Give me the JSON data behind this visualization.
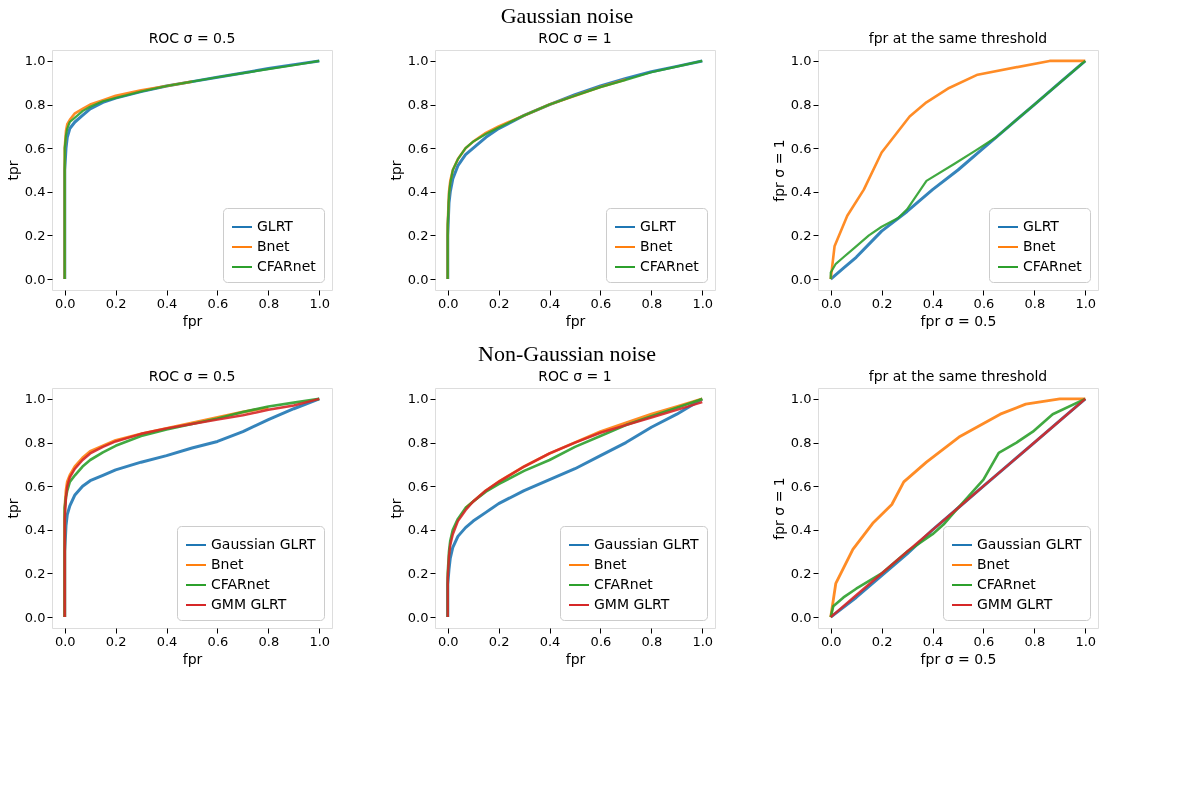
{
  "chart_data": [
    {
      "type": "line",
      "title": "ROC σ = 0.5",
      "xlabel": "fpr",
      "ylabel": "tpr",
      "annotations": [
        "Gaussian noise"
      ],
      "legend": "bottom right",
      "grid": false,
      "xlim": [
        -0.05,
        1.05
      ],
      "ylim": [
        -0.05,
        1.05
      ],
      "xticks": [
        {
          "value": 0,
          "label": "0.0"
        },
        {
          "value": 0.2,
          "label": "0.2"
        },
        {
          "value": 0.4,
          "label": "0.4"
        },
        {
          "value": 0.6,
          "label": "0.6"
        },
        {
          "value": 0.8,
          "label": "0.8"
        },
        {
          "value": 1,
          "label": "1.0"
        }
      ],
      "yticks": [
        {
          "value": 0,
          "label": "0.0"
        },
        {
          "value": 0.2,
          "label": "0.2"
        },
        {
          "value": 0.4,
          "label": "0.4"
        },
        {
          "value": 0.6,
          "label": "0.6"
        },
        {
          "value": 0.8,
          "label": "0.8"
        },
        {
          "value": 1,
          "label": "1.0"
        }
      ],
      "series": [
        {
          "name": "GLRT",
          "color": "#1f77b4",
          "x": [
            0,
            0,
            0.005,
            0.01,
            0.02,
            0.04,
            0.07,
            0.1,
            0.15,
            0.2,
            0.3,
            0.4,
            0.5,
            0.6,
            0.7,
            0.8,
            0.9,
            1
          ],
          "values": [
            0,
            0.5,
            0.6,
            0.65,
            0.69,
            0.72,
            0.75,
            0.78,
            0.81,
            0.83,
            0.86,
            0.885,
            0.905,
            0.925,
            0.945,
            0.965,
            0.983,
            1
          ]
        },
        {
          "name": "Bnet",
          "color": "#ff7f0e",
          "x": [
            0,
            0,
            0.005,
            0.01,
            0.02,
            0.04,
            0.07,
            0.1,
            0.15,
            0.2,
            0.3,
            0.4,
            0.5
          ],
          "values": [
            0,
            0.6,
            0.68,
            0.71,
            0.73,
            0.76,
            0.78,
            0.8,
            0.82,
            0.84,
            0.865,
            0.885,
            0.905
          ]
        },
        {
          "name": "CFARnet",
          "color": "#2ca02c",
          "x": [
            0,
            0,
            0.005,
            0.01,
            0.02,
            0.04,
            0.07,
            0.1,
            0.15,
            0.2,
            0.3,
            0.4,
            0.5,
            0.6,
            0.7,
            0.8,
            0.9,
            1
          ],
          "values": [
            0,
            0.6,
            0.66,
            0.69,
            0.72,
            0.74,
            0.77,
            0.79,
            0.815,
            0.83,
            0.86,
            0.885,
            0.905,
            0.925,
            0.944,
            0.962,
            0.98,
            1
          ]
        }
      ]
    },
    {
      "type": "line",
      "title": "ROC σ = 1",
      "xlabel": "fpr",
      "ylabel": "tpr",
      "legend": "bottom right",
      "grid": false,
      "xlim": [
        -0.05,
        1.05
      ],
      "ylim": [
        -0.05,
        1.05
      ],
      "xticks": [
        {
          "value": 0,
          "label": "0.0"
        },
        {
          "value": 0.2,
          "label": "0.2"
        },
        {
          "value": 0.4,
          "label": "0.4"
        },
        {
          "value": 0.6,
          "label": "0.6"
        },
        {
          "value": 0.8,
          "label": "0.8"
        },
        {
          "value": 1,
          "label": "1.0"
        }
      ],
      "yticks": [
        {
          "value": 0,
          "label": "0.0"
        },
        {
          "value": 0.2,
          "label": "0.2"
        },
        {
          "value": 0.4,
          "label": "0.4"
        },
        {
          "value": 0.6,
          "label": "0.6"
        },
        {
          "value": 0.8,
          "label": "0.8"
        },
        {
          "value": 1,
          "label": "1.0"
        }
      ],
      "series": [
        {
          "name": "GLRT",
          "color": "#1f77b4",
          "x": [
            0,
            0,
            0.005,
            0.01,
            0.02,
            0.04,
            0.07,
            0.1,
            0.15,
            0.2,
            0.3,
            0.4,
            0.5,
            0.6,
            0.7,
            0.8,
            0.9,
            1
          ],
          "values": [
            0,
            0.2,
            0.35,
            0.4,
            0.46,
            0.52,
            0.57,
            0.6,
            0.65,
            0.69,
            0.75,
            0.8,
            0.845,
            0.885,
            0.92,
            0.95,
            0.975,
            1
          ]
        },
        {
          "name": "Bnet",
          "color": "#ff7f0e",
          "x": [
            0,
            0,
            0.005,
            0.01,
            0.02,
            0.04,
            0.07,
            0.1,
            0.15,
            0.2,
            0.3,
            0.4,
            0.5,
            0.6,
            0.7
          ],
          "values": [
            0,
            0.25,
            0.4,
            0.45,
            0.5,
            0.55,
            0.6,
            0.63,
            0.67,
            0.7,
            0.75,
            0.8,
            0.84,
            0.88,
            0.915
          ]
        },
        {
          "name": "CFARnet",
          "color": "#2ca02c",
          "x": [
            0,
            0,
            0.005,
            0.01,
            0.02,
            0.04,
            0.07,
            0.1,
            0.15,
            0.2,
            0.3,
            0.4,
            0.5,
            0.6,
            0.7,
            0.8,
            0.9,
            1
          ],
          "values": [
            0,
            0.25,
            0.39,
            0.44,
            0.5,
            0.55,
            0.6,
            0.63,
            0.665,
            0.695,
            0.75,
            0.8,
            0.84,
            0.88,
            0.913,
            0.948,
            0.974,
            1
          ]
        }
      ]
    },
    {
      "type": "line",
      "title": "fpr at the same threshold",
      "xlabel": "fpr σ = 0.5",
      "ylabel": "fpr σ = 1",
      "legend": "bottom right",
      "grid": false,
      "xlim": [
        -0.05,
        1.05
      ],
      "ylim": [
        -0.05,
        1.05
      ],
      "xticks": [
        {
          "value": 0,
          "label": "0.0"
        },
        {
          "value": 0.2,
          "label": "0.2"
        },
        {
          "value": 0.4,
          "label": "0.4"
        },
        {
          "value": 0.6,
          "label": "0.6"
        },
        {
          "value": 0.8,
          "label": "0.8"
        },
        {
          "value": 1,
          "label": "1.0"
        }
      ],
      "yticks": [
        {
          "value": 0,
          "label": "0.0"
        },
        {
          "value": 0.2,
          "label": "0.2"
        },
        {
          "value": 0.4,
          "label": "0.4"
        },
        {
          "value": 0.6,
          "label": "0.6"
        },
        {
          "value": 0.8,
          "label": "0.8"
        },
        {
          "value": 1,
          "label": "1.0"
        }
      ],
      "series": [
        {
          "name": "GLRT",
          "color": "#1f77b4",
          "x": [
            0,
            0.05,
            0.1,
            0.2,
            0.3,
            0.4,
            0.5,
            0.6,
            0.7,
            0.8,
            0.9,
            1
          ],
          "values": [
            0,
            0.05,
            0.1,
            0.22,
            0.31,
            0.41,
            0.5,
            0.6,
            0.7,
            0.8,
            0.9,
            1
          ]
        },
        {
          "name": "Bnet",
          "color": "#ff7f0e",
          "x": [
            0,
            0.015,
            0.065,
            0.13,
            0.2,
            0.31,
            0.376,
            0.465,
            0.577,
            0.86,
            1
          ],
          "values": [
            0,
            0.15,
            0.29,
            0.41,
            0.58,
            0.745,
            0.81,
            0.876,
            0.937,
            1,
            1
          ]
        },
        {
          "name": "CFARnet",
          "color": "#2ca02c",
          "x": [
            0,
            0,
            0.02,
            0.05,
            0.1,
            0.15,
            0.2,
            0.265,
            0.3,
            0.376,
            0.488,
            0.57,
            0.65,
            0.75,
            0.8,
            1
          ],
          "values": [
            0,
            0.03,
            0.07,
            0.1,
            0.15,
            0.2,
            0.24,
            0.28,
            0.32,
            0.45,
            0.53,
            0.59,
            0.65,
            0.75,
            0.8,
            1
          ]
        }
      ]
    },
    {
      "type": "line",
      "title": "ROC σ = 0.5",
      "xlabel": "fpr",
      "ylabel": "tpr",
      "annotations": [
        "Non-Gaussian noise"
      ],
      "legend": "bottom right",
      "grid": false,
      "xlim": [
        -0.05,
        1.05
      ],
      "ylim": [
        -0.05,
        1.05
      ],
      "xticks": [
        {
          "value": 0,
          "label": "0.0"
        },
        {
          "value": 0.2,
          "label": "0.2"
        },
        {
          "value": 0.4,
          "label": "0.4"
        },
        {
          "value": 0.6,
          "label": "0.6"
        },
        {
          "value": 0.8,
          "label": "0.8"
        },
        {
          "value": 1,
          "label": "1.0"
        }
      ],
      "yticks": [
        {
          "value": 0,
          "label": "0.0"
        },
        {
          "value": 0.2,
          "label": "0.2"
        },
        {
          "value": 0.4,
          "label": "0.4"
        },
        {
          "value": 0.6,
          "label": "0.6"
        },
        {
          "value": 0.8,
          "label": "0.8"
        },
        {
          "value": 1,
          "label": "1.0"
        }
      ],
      "series": [
        {
          "name": "Gaussian GLRT",
          "color": "#1f77b4",
          "x": [
            0,
            0,
            0.005,
            0.01,
            0.02,
            0.04,
            0.07,
            0.1,
            0.15,
            0.2,
            0.3,
            0.4,
            0.5,
            0.6,
            0.7,
            0.8,
            0.9,
            1
          ],
          "values": [
            0,
            0.3,
            0.42,
            0.47,
            0.51,
            0.56,
            0.6,
            0.625,
            0.65,
            0.675,
            0.71,
            0.74,
            0.775,
            0.805,
            0.85,
            0.905,
            0.955,
            1
          ]
        },
        {
          "name": "Bnet",
          "color": "#ff7f0e",
          "x": [
            0,
            0,
            0.005,
            0.01,
            0.02,
            0.04,
            0.07,
            0.1,
            0.15,
            0.2,
            0.3,
            0.4,
            0.5,
            0.6,
            0.7,
            0.8
          ],
          "values": [
            0,
            0.5,
            0.58,
            0.62,
            0.65,
            0.69,
            0.73,
            0.76,
            0.785,
            0.81,
            0.84,
            0.865,
            0.89,
            0.915,
            0.94,
            0.96
          ]
        },
        {
          "name": "CFARnet",
          "color": "#2ca02c",
          "x": [
            0,
            0,
            0.005,
            0.01,
            0.02,
            0.04,
            0.07,
            0.1,
            0.15,
            0.2,
            0.3,
            0.4,
            0.5,
            0.6,
            0.7,
            0.8,
            0.9,
            1
          ],
          "values": [
            0,
            0.5,
            0.55,
            0.58,
            0.62,
            0.65,
            0.69,
            0.72,
            0.755,
            0.785,
            0.83,
            0.86,
            0.885,
            0.91,
            0.94,
            0.965,
            0.983,
            1
          ]
        },
        {
          "name": "GMM GLRT",
          "color": "#d62728",
          "x": [
            0,
            0,
            0.005,
            0.01,
            0.02,
            0.04,
            0.07,
            0.1,
            0.15,
            0.2,
            0.3,
            0.4,
            0.5,
            0.6,
            0.7,
            0.8,
            0.9,
            1
          ],
          "values": [
            0,
            0.45,
            0.55,
            0.6,
            0.64,
            0.68,
            0.72,
            0.75,
            0.78,
            0.805,
            0.84,
            0.865,
            0.885,
            0.905,
            0.925,
            0.95,
            0.97,
            1
          ]
        }
      ]
    },
    {
      "type": "line",
      "title": "ROC σ = 1",
      "xlabel": "fpr",
      "ylabel": "tpr",
      "legend": "bottom right",
      "grid": false,
      "xlim": [
        -0.05,
        1.05
      ],
      "ylim": [
        -0.05,
        1.05
      ],
      "xticks": [
        {
          "value": 0,
          "label": "0.0"
        },
        {
          "value": 0.2,
          "label": "0.2"
        },
        {
          "value": 0.4,
          "label": "0.4"
        },
        {
          "value": 0.6,
          "label": "0.6"
        },
        {
          "value": 0.8,
          "label": "0.8"
        },
        {
          "value": 1,
          "label": "1.0"
        }
      ],
      "yticks": [
        {
          "value": 0,
          "label": "0.0"
        },
        {
          "value": 0.2,
          "label": "0.2"
        },
        {
          "value": 0.4,
          "label": "0.4"
        },
        {
          "value": 0.6,
          "label": "0.6"
        },
        {
          "value": 0.8,
          "label": "0.8"
        },
        {
          "value": 1,
          "label": "1.0"
        }
      ],
      "series": [
        {
          "name": "Gaussian GLRT",
          "color": "#1f77b4",
          "x": [
            0,
            0,
            0.005,
            0.01,
            0.02,
            0.04,
            0.07,
            0.1,
            0.15,
            0.2,
            0.3,
            0.4,
            0.5,
            0.6,
            0.7,
            0.8,
            0.9,
            1
          ],
          "values": [
            0,
            0.15,
            0.22,
            0.27,
            0.32,
            0.37,
            0.41,
            0.44,
            0.48,
            0.52,
            0.58,
            0.63,
            0.68,
            0.74,
            0.8,
            0.87,
            0.93,
            1
          ]
        },
        {
          "name": "Bnet",
          "color": "#ff7f0e",
          "x": [
            0.07,
            0.1,
            0.15,
            0.2,
            0.3,
            0.4,
            0.5,
            0.6,
            0.7,
            0.8,
            0.9,
            1
          ],
          "values": [
            0.5,
            0.53,
            0.58,
            0.62,
            0.69,
            0.75,
            0.8,
            0.85,
            0.89,
            0.93,
            0.965,
            1
          ]
        },
        {
          "name": "CFARnet",
          "color": "#2ca02c",
          "x": [
            0,
            0,
            0.005,
            0.01,
            0.02,
            0.04,
            0.07,
            0.1,
            0.15,
            0.2,
            0.3,
            0.4,
            0.5,
            0.6,
            0.7,
            0.8,
            0.9,
            1
          ],
          "values": [
            0,
            0.2,
            0.3,
            0.35,
            0.4,
            0.45,
            0.5,
            0.53,
            0.575,
            0.61,
            0.67,
            0.72,
            0.78,
            0.83,
            0.88,
            0.92,
            0.96,
            1
          ]
        },
        {
          "name": "GMM GLRT",
          "color": "#d62728",
          "x": [
            0,
            0,
            0.005,
            0.01,
            0.02,
            0.04,
            0.07,
            0.1,
            0.15,
            0.2,
            0.3,
            0.4,
            0.5,
            0.6,
            0.7,
            0.8,
            0.9,
            1
          ],
          "values": [
            0,
            0.18,
            0.28,
            0.33,
            0.38,
            0.44,
            0.49,
            0.53,
            0.58,
            0.62,
            0.69,
            0.75,
            0.8,
            0.845,
            0.88,
            0.915,
            0.95,
            0.985
          ]
        }
      ]
    },
    {
      "type": "line",
      "title": "fpr at the same threshold",
      "xlabel": "fpr σ = 0.5",
      "ylabel": "fpr σ = 1",
      "legend": "bottom right",
      "grid": false,
      "xlim": [
        -0.05,
        1.05
      ],
      "ylim": [
        -0.05,
        1.05
      ],
      "xticks": [
        {
          "value": 0,
          "label": "0.0"
        },
        {
          "value": 0.2,
          "label": "0.2"
        },
        {
          "value": 0.4,
          "label": "0.4"
        },
        {
          "value": 0.6,
          "label": "0.6"
        },
        {
          "value": 0.8,
          "label": "0.8"
        },
        {
          "value": 1,
          "label": "1.0"
        }
      ],
      "yticks": [
        {
          "value": 0,
          "label": "0.0"
        },
        {
          "value": 0.2,
          "label": "0.2"
        },
        {
          "value": 0.4,
          "label": "0.4"
        },
        {
          "value": 0.6,
          "label": "0.6"
        },
        {
          "value": 0.8,
          "label": "0.8"
        },
        {
          "value": 1,
          "label": "1.0"
        }
      ],
      "series": [
        {
          "name": "Gaussian GLRT",
          "color": "#1f77b4",
          "x": [
            0,
            0.1,
            0.2,
            0.3,
            0.4,
            0.5,
            0.6,
            0.7,
            0.8,
            0.9,
            1
          ],
          "values": [
            0,
            0.09,
            0.19,
            0.29,
            0.4,
            0.5,
            0.6,
            0.7,
            0.8,
            0.9,
            1
          ]
        },
        {
          "name": "Bnet",
          "color": "#ff7f0e",
          "x": [
            0,
            0.02,
            0.087,
            0.165,
            0.24,
            0.287,
            0.376,
            0.504,
            0.666,
            0.766,
            0.9,
            1
          ],
          "values": [
            0,
            0.155,
            0.31,
            0.43,
            0.516,
            0.62,
            0.71,
            0.825,
            0.93,
            0.976,
            1,
            1
          ]
        },
        {
          "name": "CFARnet",
          "color": "#2ca02c",
          "x": [
            0,
            0.01,
            0.05,
            0.1,
            0.2,
            0.3,
            0.4,
            0.443,
            0.5,
            0.6,
            0.66,
            0.73,
            0.794,
            0.872,
            1
          ],
          "values": [
            0,
            0.05,
            0.09,
            0.13,
            0.2,
            0.3,
            0.38,
            0.424,
            0.5,
            0.63,
            0.753,
            0.8,
            0.85,
            0.93,
            1
          ]
        },
        {
          "name": "GMM GLRT",
          "color": "#d62728",
          "x": [
            0,
            0.1,
            0.2,
            0.3,
            0.4,
            0.5,
            0.6,
            0.7,
            0.8,
            0.9,
            1
          ],
          "values": [
            0,
            0.1,
            0.2,
            0.3,
            0.4,
            0.5,
            0.6,
            0.7,
            0.8,
            0.9,
            1
          ]
        }
      ]
    }
  ]
}
